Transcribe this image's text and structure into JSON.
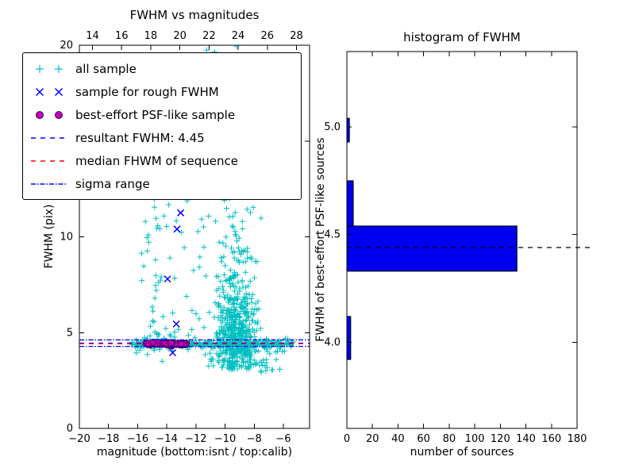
{
  "figure": {
    "background": "#ffffff"
  },
  "chart_data": [
    {
      "type": "scatter",
      "title": "FWHM vs magnitudes",
      "xlabel": "magnitude (bottom:isnt / top:calib)",
      "ylabel": "FWHM (pix)",
      "xlim": [
        -20,
        -4.2
      ],
      "ylim": [
        0,
        20
      ],
      "grid": false,
      "xticks": [
        {
          "v": -20,
          "label": "−20"
        },
        {
          "v": -18,
          "label": "−18"
        },
        {
          "v": -16,
          "label": "−16"
        },
        {
          "v": -14,
          "label": "−14"
        },
        {
          "v": -12,
          "label": "−12"
        },
        {
          "v": -10,
          "label": "−10"
        },
        {
          "v": -8,
          "label": "−8"
        },
        {
          "v": -6,
          "label": "−6"
        }
      ],
      "yticks": [
        {
          "v": 0,
          "label": "0"
        },
        {
          "v": 5,
          "label": "5"
        },
        {
          "v": 10,
          "label": "10"
        },
        {
          "v": 15,
          "label": "15"
        },
        {
          "v": 20,
          "label": "20"
        }
      ],
      "top_axis": {
        "lim": [
          13.1,
          28.9
        ],
        "ticks": [
          {
            "v": 14,
            "label": "14"
          },
          {
            "v": 16,
            "label": "16"
          },
          {
            "v": 18,
            "label": "18"
          },
          {
            "v": 20,
            "label": "20"
          },
          {
            "v": 22,
            "label": "22"
          },
          {
            "v": 24,
            "label": "24"
          },
          {
            "v": 26,
            "label": "26"
          },
          {
            "v": 28,
            "label": "28"
          }
        ]
      },
      "series": [
        {
          "name": "all sample",
          "marker": "plus",
          "color": "#00bfbf",
          "seed": 7,
          "clusters": [
            {
              "count": 300,
              "x": {
                "mu": -9.25,
                "sigma": 0.7
              },
              "y": {
                "mu": 4.9,
                "sigma": 0.9
              },
              "ymin": 3.1
            },
            {
              "count": 220,
              "x": {
                "mu": -9.4,
                "sigma": 0.8
              },
              "y": {
                "mu": 6.8,
                "sigma": 2.2
              },
              "ymin": 3.2
            },
            {
              "count": 70,
              "x": {
                "mu": -9.2,
                "sigma": 0.75
              },
              "y": [
                3.2,
                4.3
              ]
            },
            {
              "count": 40,
              "x": {
                "mu": -9.8,
                "sigma": 1.0
              },
              "y": [
                11,
                17
              ]
            },
            {
              "count": 28,
              "x": {
                "mu": -10.3,
                "sigma": 1.1
              },
              "y": [
                16.5,
                20.3
              ]
            },
            {
              "count": 260,
              "x": [
                -16.4,
                -5.2
              ],
              "y": {
                "mu": 4.42,
                "sigma": 0.07
              }
            },
            {
              "count": 90,
              "x": [
                -16.2,
                -5.4
              ],
              "y": {
                "mu": 4.45,
                "sigma": 0.28
              }
            },
            {
              "count": 45,
              "x": [
                -15.8,
                -11.3
              ],
              "y": [
                4.8,
                13.5
              ]
            },
            {
              "count": 35,
              "x": [
                -11,
                -5.8
              ],
              "y": [
                2.9,
                4.1
              ]
            },
            {
              "count": 12,
              "x": {
                "mu": -14.8,
                "sigma": 0.12
              },
              "y": [
                5,
                13
              ]
            }
          ]
        },
        {
          "name": "sample for rough FWHM",
          "marker": "x",
          "color": "#0000ff",
          "points": [
            [
              -13.05,
              11.25
            ],
            [
              -13.3,
              10.4
            ],
            [
              -13.95,
              7.8
            ],
            [
              -13.35,
              5.45
            ],
            [
              -13.6,
              3.95
            ],
            [
              -15.2,
              4.45
            ],
            [
              -14.7,
              4.4
            ],
            [
              -14.2,
              4.5
            ],
            [
              -13.7,
              4.38
            ],
            [
              -13.1,
              4.44
            ],
            [
              -12.75,
              4.4
            ]
          ]
        },
        {
          "name": "best-effort PSF-like sample",
          "marker": "circle",
          "color": "#bf00bf",
          "edge": "#4a0048",
          "seed": 11,
          "clusters": [
            {
              "count": 50,
              "x": [
                -15.5,
                -12.6
              ],
              "y": {
                "mu": 4.42,
                "sigma": 0.045
              }
            }
          ]
        }
      ],
      "lines": [
        {
          "name": "resultant FWHM: 4.45",
          "y": [
            4.45
          ],
          "dash": "dashed",
          "color": "#0000ff"
        },
        {
          "name": "median FHWM of sequence",
          "y": [
            4.42
          ],
          "dash": "dashed",
          "color": "#ff0000"
        },
        {
          "name": "sigma range",
          "y": [
            4.28,
            4.62
          ],
          "dash": "dashdot",
          "color": "#0000ff"
        }
      ],
      "resultant_fwhm": 4.45,
      "legend": {
        "items": [
          {
            "label": "all sample",
            "marker": "plus",
            "color": "#00bfbf"
          },
          {
            "label": "sample for rough FWHM",
            "marker": "x",
            "color": "#0000ff"
          },
          {
            "label": "best-effort PSF-like sample",
            "marker": "circle",
            "color": "#bf00bf",
            "edge": "#4a0048"
          },
          {
            "label": "resultant FWHM: 4.45",
            "marker": "line-dashed",
            "color": "#0000ff"
          },
          {
            "label": "median FHWM of sequence",
            "marker": "line-dashed",
            "color": "#ff0000"
          },
          {
            "label": "sigma range",
            "marker": "line-dashdot",
            "color": "#0000ff"
          }
        ]
      }
    },
    {
      "type": "bar-horizontal",
      "title": "histogram of FWHM",
      "xlabel": "number of sources",
      "ylabel": "FWHM of best-effort PSF-like sources",
      "xlim": [
        0,
        180
      ],
      "ylim": [
        3.6,
        5.35
      ],
      "grid": false,
      "xticks": [
        {
          "v": 0,
          "label": "0"
        },
        {
          "v": 20,
          "label": "20"
        },
        {
          "v": 40,
          "label": "40"
        },
        {
          "v": 60,
          "label": "60"
        },
        {
          "v": 80,
          "label": "80"
        },
        {
          "v": 100,
          "label": "100"
        },
        {
          "v": 120,
          "label": "120"
        },
        {
          "v": 140,
          "label": "140"
        },
        {
          "v": 160,
          "label": "160"
        },
        {
          "v": 180,
          "label": "180"
        }
      ],
      "yticks": [
        {
          "v": 4.0,
          "label": "4.0"
        },
        {
          "v": 4.5,
          "label": "4.5"
        },
        {
          "v": 5.0,
          "label": "5.0"
        }
      ],
      "bar_color": "#0000ee",
      "bar_edge": "#000000",
      "bars": [
        {
          "y0": 3.92,
          "y1": 4.12,
          "count": 3
        },
        {
          "y0": 4.33,
          "y1": 4.54,
          "count": 133
        },
        {
          "y0": 4.54,
          "y1": 4.75,
          "count": 5
        },
        {
          "y0": 4.93,
          "y1": 5.04,
          "count": 2
        }
      ],
      "median_line": {
        "y": 4.44,
        "dash": "dashed",
        "color": "#000000"
      }
    }
  ]
}
